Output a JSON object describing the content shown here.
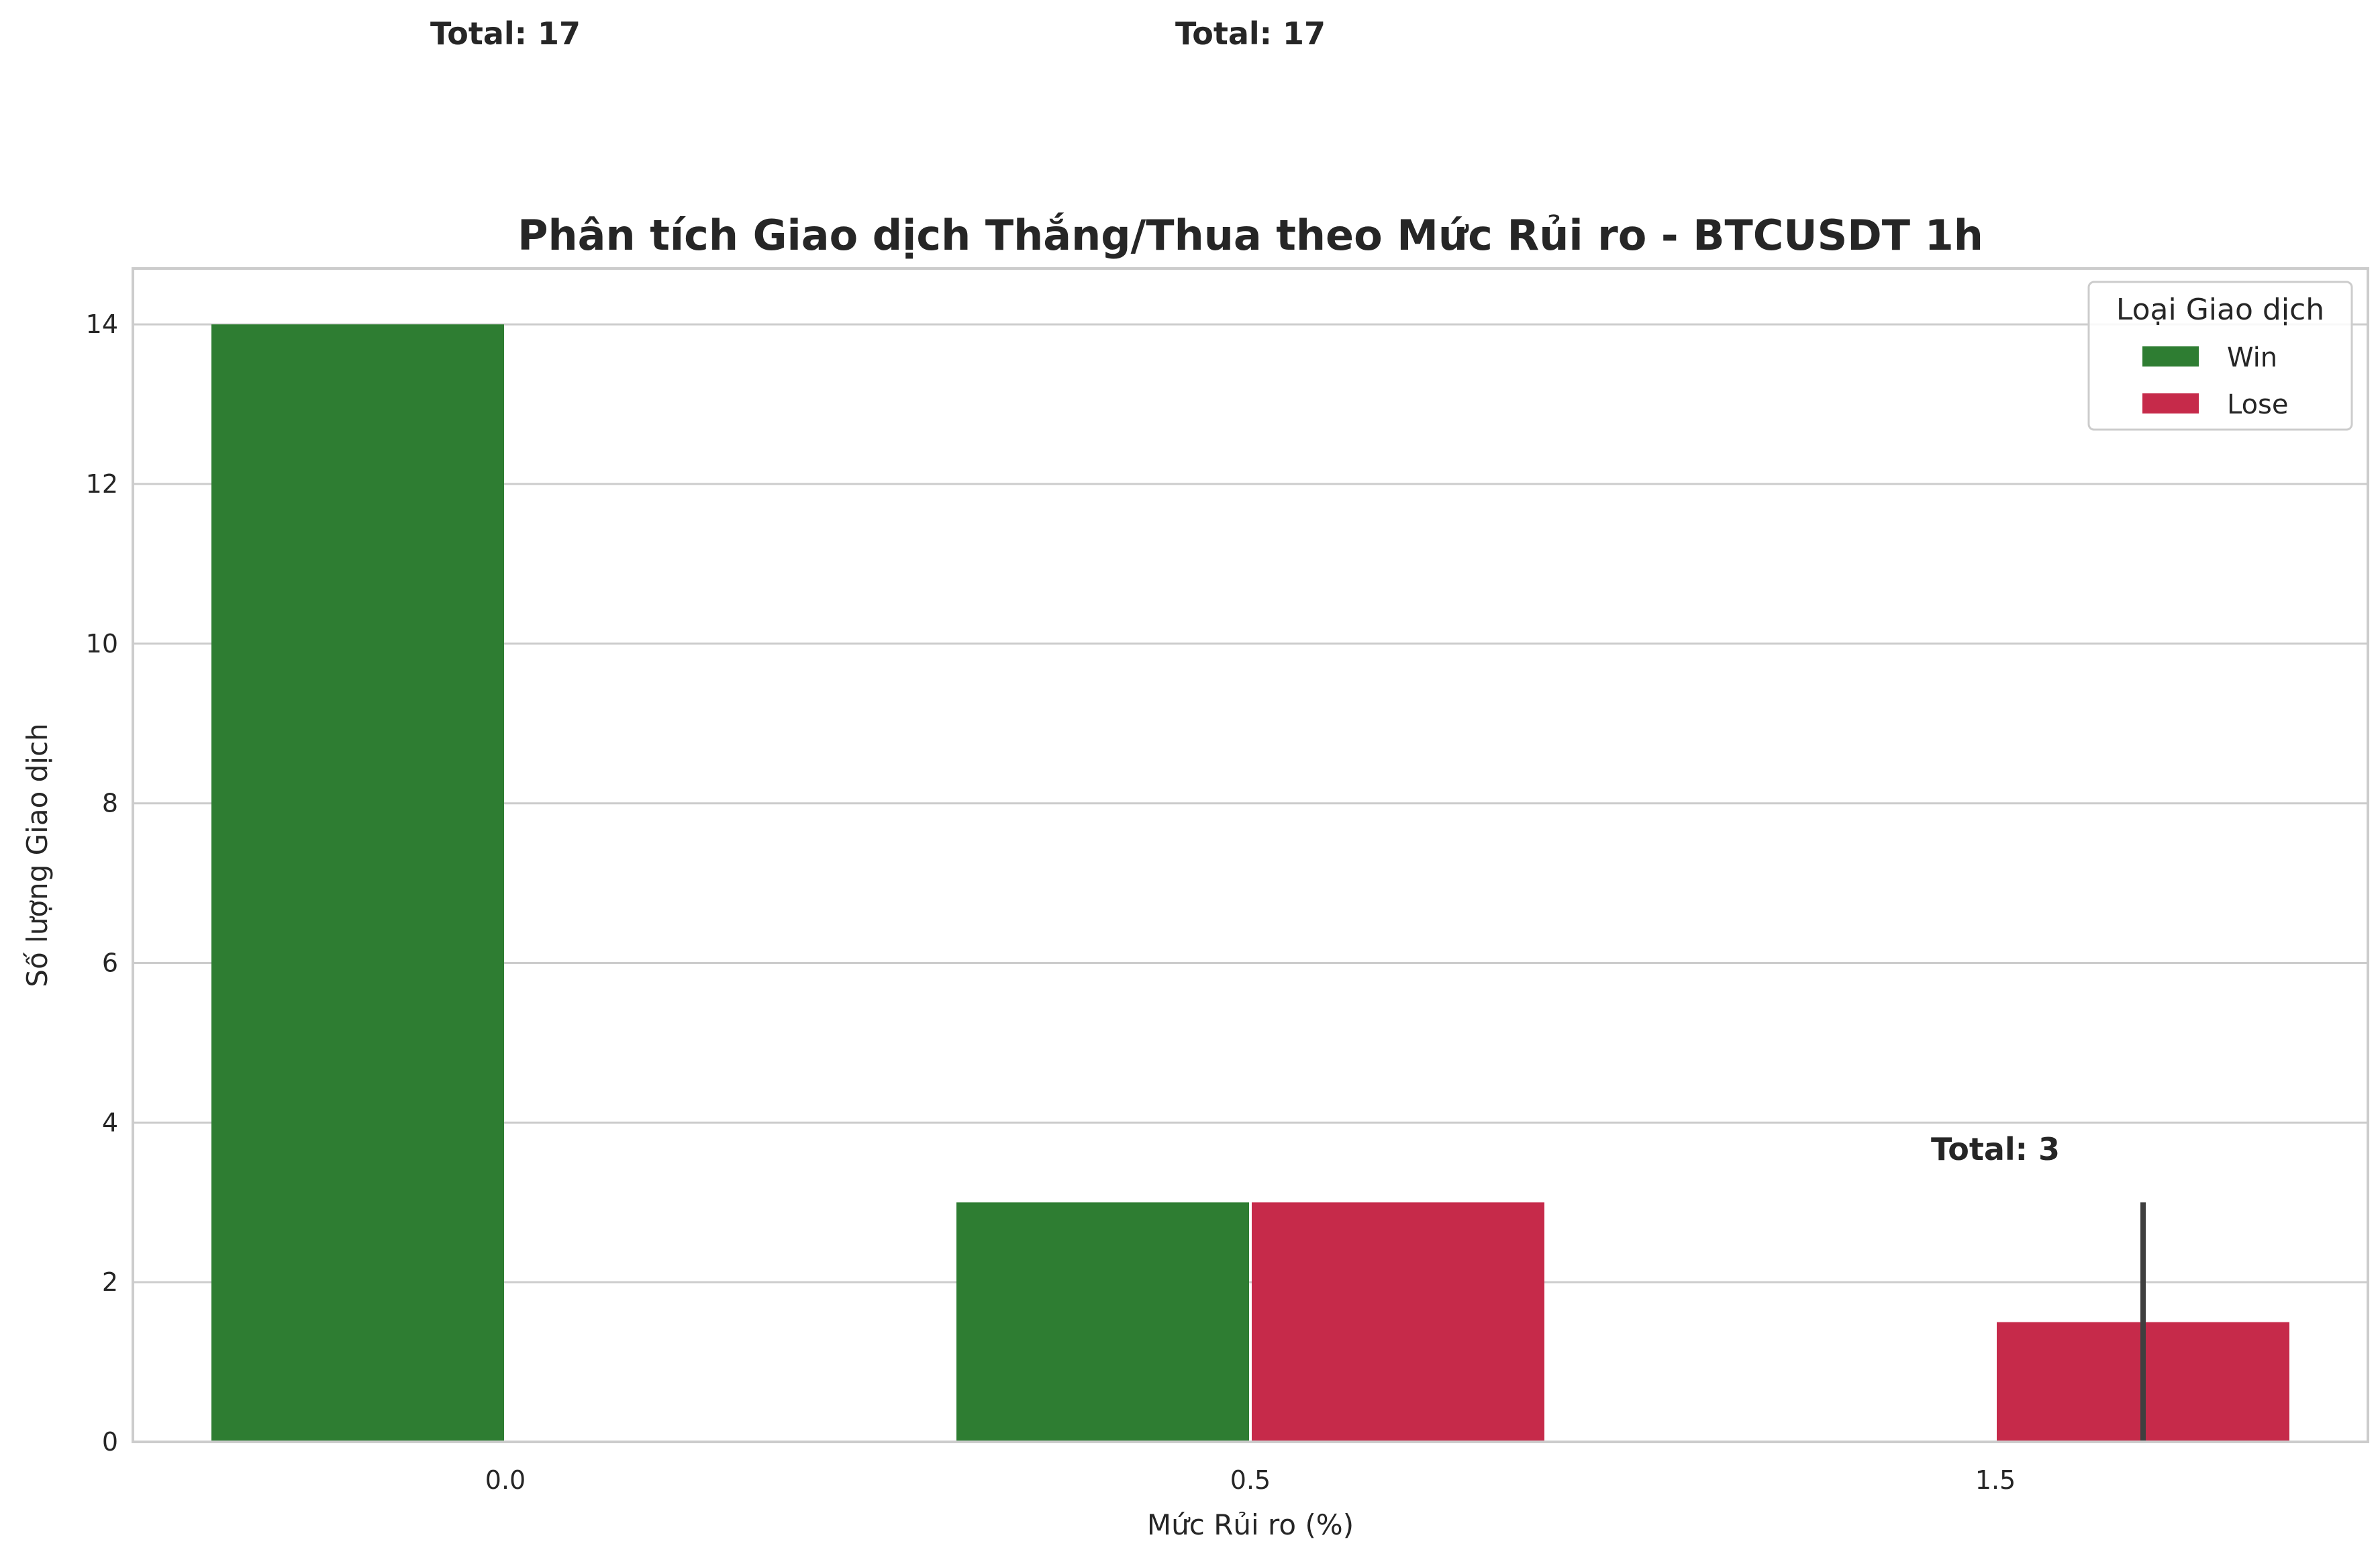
{
  "chart_data": {
    "type": "bar",
    "title": "Phân tích Giao dịch Thắng/Thua theo Mức Rủi ro - BTCUSDT 1h",
    "xlabel": "Mức Rủi ro (%)",
    "ylabel": "Số lượng Giao dịch",
    "categories": [
      "0.0",
      "0.5",
      "1.5"
    ],
    "series": [
      {
        "name": "Win",
        "color": "#2e7d32",
        "values": [
          14,
          3,
          null
        ]
      },
      {
        "name": "Lose",
        "color": "#c62a4a",
        "values": [
          null,
          3,
          1.5
        ]
      }
    ],
    "error_bars": [
      {
        "series": "Lose",
        "category": "1.5",
        "low": 0,
        "high": 3
      }
    ],
    "annotations": [
      {
        "text": "Total: 17",
        "category": "0.0"
      },
      {
        "text": "Total: 17",
        "category": "0.5"
      },
      {
        "text": "Total: 3",
        "category": "1.5"
      }
    ],
    "yticks": [
      0,
      2,
      4,
      6,
      8,
      10,
      12,
      14
    ],
    "ylim": [
      0,
      14.7
    ],
    "grid": true,
    "legend": {
      "title": "Loại Giao dịch",
      "placement": "top-right"
    }
  }
}
